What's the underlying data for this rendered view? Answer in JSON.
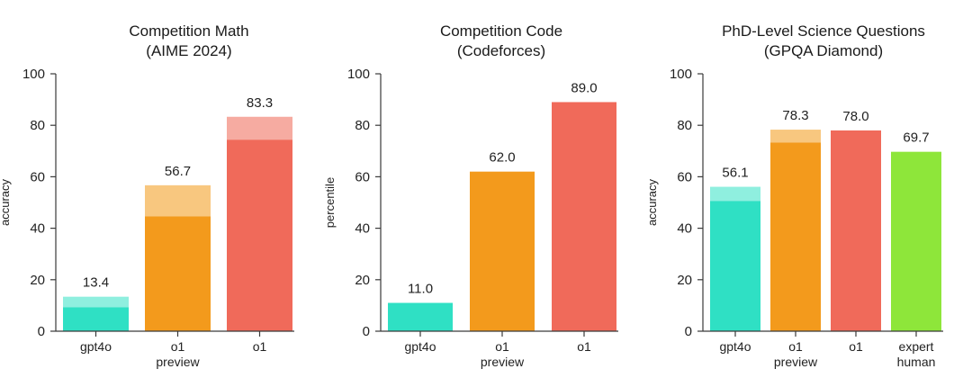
{
  "chart_data": [
    {
      "type": "bar",
      "title": [
        "Competition Math",
        "(AIME 2024)"
      ],
      "ylabel": "accuracy",
      "ylim": [
        0,
        100
      ],
      "yticks": [
        "0",
        "20",
        "40",
        "60",
        "80",
        "100"
      ],
      "categories": [
        [
          "gpt4o"
        ],
        [
          "o1",
          "preview"
        ],
        [
          "o1"
        ]
      ],
      "values": [
        13.4,
        56.7,
        83.3
      ],
      "base_values": [
        9.3,
        44.6,
        74.4
      ],
      "labels": [
        "13.4",
        "56.7",
        "83.3"
      ],
      "colors": [
        "#2fe0c4",
        "#f39a1c",
        "#f06a5a"
      ],
      "light_colors": [
        "#8fefdf",
        "#f8c77f",
        "#f6aba1"
      ]
    },
    {
      "type": "bar",
      "title": [
        "Competition Code",
        "(Codeforces)"
      ],
      "ylabel": "percentile",
      "ylim": [
        0,
        100
      ],
      "yticks": [
        "0",
        "20",
        "40",
        "60",
        "80",
        "100"
      ],
      "categories": [
        [
          "gpt4o"
        ],
        [
          "o1",
          "preview"
        ],
        [
          "o1"
        ]
      ],
      "values": [
        11.0,
        62.0,
        89.0
      ],
      "base_values": [
        11.0,
        62.0,
        89.0
      ],
      "labels": [
        "11.0",
        "62.0",
        "89.0"
      ],
      "colors": [
        "#2fe0c4",
        "#f39a1c",
        "#f06a5a"
      ],
      "light_colors": [
        "#8fefdf",
        "#f8c77f",
        "#f6aba1"
      ]
    },
    {
      "type": "bar",
      "title": [
        "PhD-Level Science Questions",
        "(GPQA Diamond)"
      ],
      "ylabel": "accuracy",
      "ylim": [
        0,
        100
      ],
      "yticks": [
        "0",
        "20",
        "40",
        "60",
        "80",
        "100"
      ],
      "categories": [
        [
          "gpt4o"
        ],
        [
          "o1",
          "preview"
        ],
        [
          "o1"
        ],
        [
          "expert",
          "human"
        ]
      ],
      "values": [
        56.1,
        78.3,
        78.0,
        69.7
      ],
      "base_values": [
        50.6,
        73.3,
        78.0,
        69.7
      ],
      "labels": [
        "56.1",
        "78.3",
        "78.0",
        "69.7"
      ],
      "colors": [
        "#2fe0c4",
        "#f39a1c",
        "#f06a5a",
        "#8ee63a"
      ],
      "light_colors": [
        "#8fefdf",
        "#f8c77f",
        "#f6aba1",
        "#c3f08f"
      ]
    }
  ]
}
